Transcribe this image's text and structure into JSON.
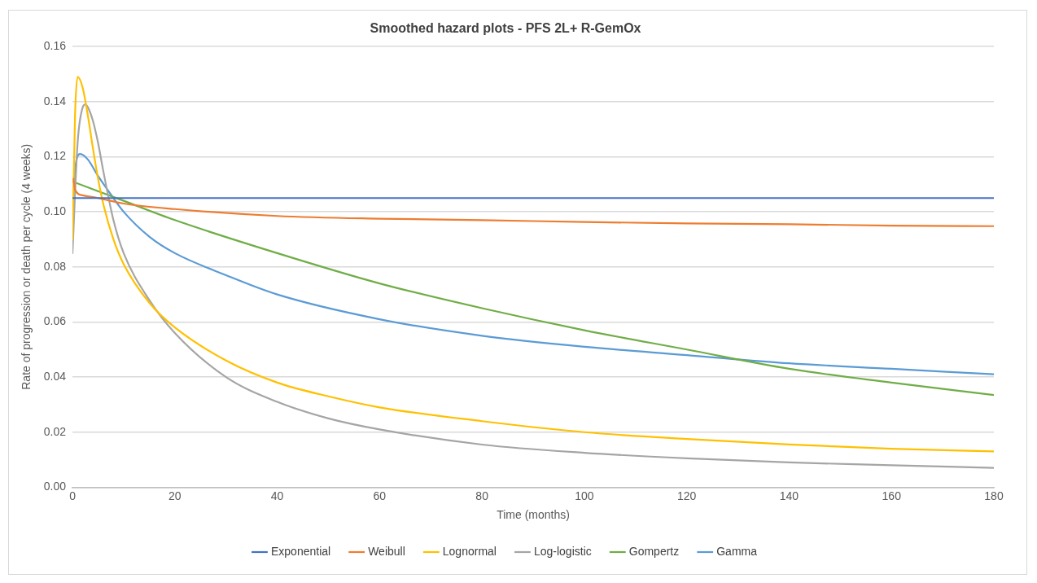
{
  "chart_data": {
    "type": "line",
    "title": "Smoothed hazard plots - PFS 2L+ R-GemOx",
    "xlabel": "Time (months)",
    "ylabel": "Rate of progression or death per cycle (4 weeks)",
    "xlim": [
      0,
      180
    ],
    "xticks": [
      0,
      20,
      40,
      60,
      80,
      100,
      120,
      140,
      160,
      180
    ],
    "ylim": [
      0,
      0.16
    ],
    "yticks": [
      {
        "value": 0,
        "label": "0.00"
      },
      {
        "value": 0.02,
        "label": "0.02"
      },
      {
        "value": 0.04,
        "label": "0.04"
      },
      {
        "value": 0.06,
        "label": "0.06"
      },
      {
        "value": 0.08,
        "label": "0.08"
      },
      {
        "value": 0.1,
        "label": "0.10"
      },
      {
        "value": 0.12,
        "label": "0.12"
      },
      {
        "value": 0.14,
        "label": "0.14"
      },
      {
        "value": 0.16,
        "label": "0.16"
      }
    ],
    "grid": "y",
    "legend": "bottom",
    "marker": "none",
    "line_style": "solid",
    "series": [
      {
        "name": "Exponential",
        "color": "#4472c4",
        "x": [
          0,
          180
        ],
        "values": [
          0.105,
          0.105
        ]
      },
      {
        "name": "Weibull",
        "color": "#ed7d31",
        "x": [
          0.2,
          0.5,
          2,
          5,
          10,
          20,
          40,
          60,
          80,
          100,
          120,
          140,
          160,
          180
        ],
        "values": [
          0.112,
          0.108,
          0.106,
          0.105,
          0.103,
          0.101,
          0.0985,
          0.0975,
          0.097,
          0.0963,
          0.0958,
          0.0955,
          0.095,
          0.0948
        ]
      },
      {
        "name": "Lognormal",
        "color": "#ffc000",
        "x": [
          0,
          0.5,
          1,
          2,
          3,
          4,
          5,
          6,
          8,
          10,
          15,
          20,
          30,
          40,
          50,
          60,
          80,
          100,
          120,
          140,
          160,
          180
        ],
        "values": [
          0.09,
          0.135,
          0.149,
          0.145,
          0.135,
          0.123,
          0.112,
          0.103,
          0.09,
          0.081,
          0.067,
          0.058,
          0.046,
          0.038,
          0.033,
          0.029,
          0.024,
          0.02,
          0.0175,
          0.0155,
          0.014,
          0.013
        ]
      },
      {
        "name": "Log-logistic",
        "color": "#a5a5a5",
        "x": [
          0,
          1,
          2,
          2.5,
          3,
          4,
          5,
          6,
          8,
          10,
          15,
          20,
          30,
          40,
          50,
          60,
          80,
          100,
          120,
          140,
          160,
          180
        ],
        "values": [
          0.085,
          0.125,
          0.138,
          0.139,
          0.138,
          0.133,
          0.125,
          0.115,
          0.097,
          0.085,
          0.068,
          0.056,
          0.04,
          0.031,
          0.025,
          0.021,
          0.0155,
          0.0125,
          0.0105,
          0.009,
          0.008,
          0.007
        ]
      },
      {
        "name": "Gompertz",
        "color": "#70ad47",
        "x": [
          0,
          10,
          20,
          40,
          60,
          80,
          100,
          120,
          140,
          160,
          180
        ],
        "values": [
          0.111,
          0.104,
          0.097,
          0.085,
          0.074,
          0.065,
          0.057,
          0.05,
          0.043,
          0.038,
          0.0335
        ]
      },
      {
        "name": "Gamma",
        "color": "#5b9bd5",
        "x": [
          0,
          0.5,
          1.5,
          3,
          5,
          8,
          10,
          15,
          20,
          30,
          40,
          60,
          80,
          100,
          120,
          140,
          160,
          180
        ],
        "values": [
          0.097,
          0.115,
          0.121,
          0.119,
          0.113,
          0.105,
          0.1,
          0.091,
          0.085,
          0.077,
          0.07,
          0.061,
          0.055,
          0.051,
          0.048,
          0.045,
          0.043,
          0.041
        ]
      }
    ]
  }
}
